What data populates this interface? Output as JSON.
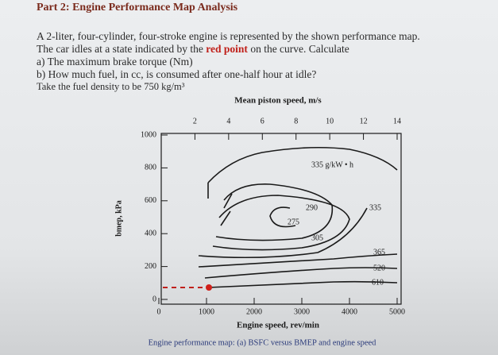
{
  "header": {
    "title": "Part 2: Engine Performance Map Analysis"
  },
  "problem": {
    "line1": "A 2-liter, four-cylinder, four-stroke engine is represented by the shown performance map.",
    "line2_start": "The car idles at a state indicated by the ",
    "line2_highlight": "red point",
    "line2_end": " on the curve. Calculate",
    "item_a": "a) The maximum brake torque (Nm)",
    "item_b": "b) How much fuel, in cc, is consumed after one-half hour at idle?",
    "note": "Take the fuel density to be 750 kg/m³"
  },
  "figure": {
    "top_axis_title": "Mean piston speed, m/s",
    "top_ticks": [
      2,
      4,
      6,
      8,
      10,
      12,
      14
    ],
    "left_axis_title": "bmep, kPa",
    "left_ticks": [
      1000,
      800,
      600,
      400,
      200,
      0
    ],
    "bottom_axis_title": "Engine speed, rev/min",
    "bottom_ticks": [
      0,
      1000,
      2000,
      3000,
      4000,
      5000
    ],
    "contour_labels": [
      "335 g/kW • h",
      "290",
      "275",
      "305",
      "335",
      "365",
      "520",
      "610"
    ],
    "caption": "Engine performance map: (a) BSFC versus BMEP and engine speed"
  }
}
